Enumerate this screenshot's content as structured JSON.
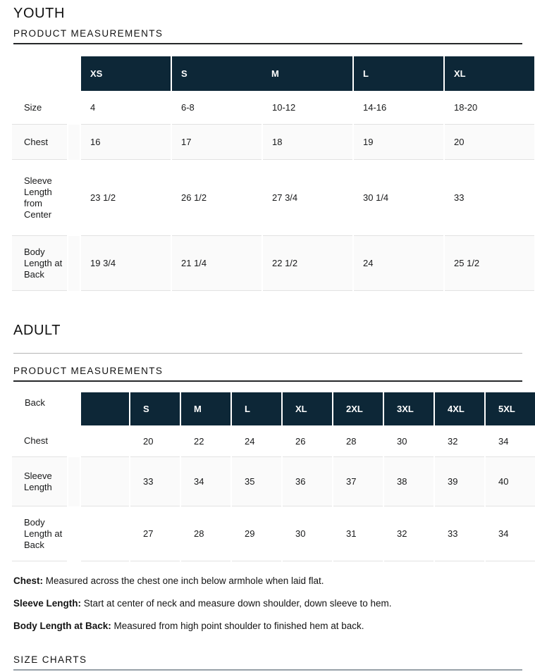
{
  "page": {
    "youth_heading": "YOUTH",
    "adult_heading": "ADULT",
    "product_measurements_label": "PRODUCT MEASUREMENTS",
    "size_charts_label": "SIZE CHARTS"
  },
  "youth_table": {
    "columns": [
      "XS",
      "S",
      "M",
      "L",
      "XL"
    ],
    "rows": [
      {
        "label": "Size",
        "values": [
          "4",
          "6-8",
          "10-12",
          "14-16",
          "18-20"
        ]
      },
      {
        "label": "Chest",
        "values": [
          "16",
          "17",
          "18",
          "19",
          "20"
        ]
      },
      {
        "label": "Sleeve Length from Center",
        "values": [
          "23 1/2",
          "26 1/2",
          "27 3/4",
          "30 1/4",
          "33"
        ]
      },
      {
        "label": "Body Length at Back",
        "values": [
          "19 3/4",
          "21 1/4",
          "22 1/2",
          "24",
          "25 1/2"
        ]
      }
    ]
  },
  "adult_table": {
    "corner_label": "Back",
    "columns": [
      "S",
      "M",
      "L",
      "XL",
      "2XL",
      "3XL",
      "4XL",
      "5XL"
    ],
    "rows": [
      {
        "label": "Chest",
        "values": [
          "20",
          "22",
          "24",
          "26",
          "28",
          "30",
          "32",
          "34"
        ]
      },
      {
        "label": "Sleeve Length",
        "values": [
          "33",
          "34",
          "35",
          "36",
          "37",
          "38",
          "39",
          "40"
        ]
      },
      {
        "label": "Body Length at Back",
        "values": [
          "27",
          "28",
          "29",
          "30",
          "31",
          "32",
          "33",
          "34"
        ]
      }
    ]
  },
  "notes": [
    {
      "term": "Chest:",
      "text": "Measured across the chest one inch below armhole when laid flat."
    },
    {
      "term": "Sleeve Length:",
      "text": "Start at center of neck and measure down shoulder, down sleeve to hem."
    },
    {
      "term": "Body Length at Back:",
      "text": "Measured from high point shoulder to finished hem at back."
    }
  ],
  "colors": {
    "header_bg": "#0d2737",
    "zebra_row": "#fafafa",
    "row_divider": "#e2e2e2",
    "heading_underline": "#26282a",
    "size_charts_underline": "#97a1a8"
  }
}
